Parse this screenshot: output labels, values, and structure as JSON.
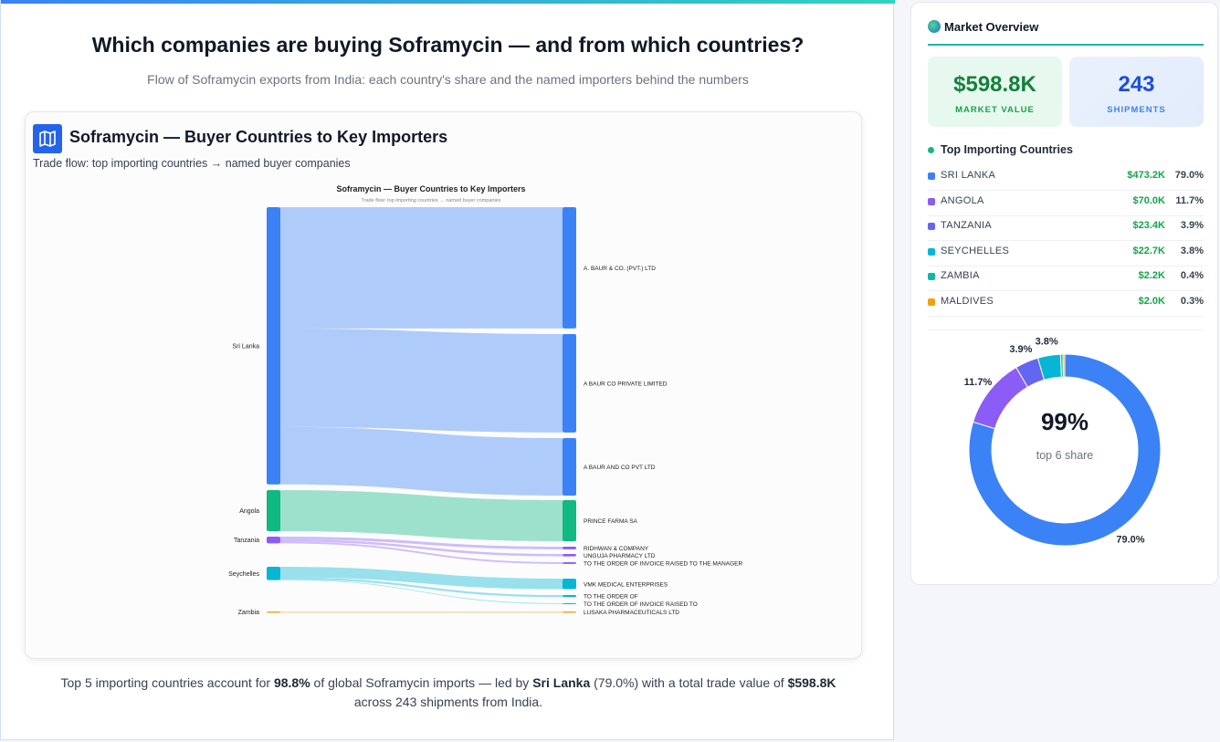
{
  "header": {
    "title": "Which companies are buying Soframycin — and from which countries?",
    "subtitle": "Flow of Soframycin exports from India: each country's share and the named importers behind the numbers"
  },
  "card": {
    "title": "Soframycin — Buyer Countries to Key Importers",
    "subtitle": "Trade flow: top importing countries → named buyer companies"
  },
  "sankey": {
    "type": "sankey",
    "sources": [
      {
        "name": "Sri Lanka",
        "color": "#3b82f6"
      },
      {
        "name": "Angola",
        "color": "#10b981"
      },
      {
        "name": "Tanzania",
        "color": "#8b5cf6"
      },
      {
        "name": "Seychelles",
        "color": "#06b6d4"
      },
      {
        "name": "Zambia",
        "color": "#f59e0b"
      }
    ],
    "targets": [
      {
        "name": "A. BAUR & CO. (PVT.) LTD"
      },
      {
        "name": "A BAUR CO PRIVATE LIMITED"
      },
      {
        "name": "A BAUR AND CO PVT LTD"
      },
      {
        "name": "PRINCE FARMA SA"
      },
      {
        "name": "RIDHWAN & COMPANY"
      },
      {
        "name": "UNGUJA PHARMACY LTD"
      },
      {
        "name": "TO THE ORDER OF INVOICE RAISED TO THE MANAGER"
      },
      {
        "name": "VMK MEDICAL ENTERPRISES"
      },
      {
        "name": "TO THE ORDER OF"
      },
      {
        "name": "TO THE ORDER OF INVOICE RAISED TO"
      },
      {
        "name": "LUSAKA PHARMACEUTICALS LTD"
      }
    ],
    "links": [
      {
        "source": 0,
        "target": 0,
        "value": 207
      },
      {
        "source": 0,
        "target": 1,
        "value": 168
      },
      {
        "source": 0,
        "target": 2,
        "value": 98.2
      },
      {
        "source": 1,
        "target": 3,
        "value": 70.0
      },
      {
        "source": 2,
        "target": 4,
        "value": 4.5
      },
      {
        "source": 2,
        "target": 5,
        "value": 4.0
      },
      {
        "source": 2,
        "target": 6,
        "value": 3.0
      },
      {
        "source": 3,
        "target": 7,
        "value": 18
      },
      {
        "source": 3,
        "target": 8,
        "value": 3.5
      },
      {
        "source": 3,
        "target": 9,
        "value": 1.2
      },
      {
        "source": 4,
        "target": 10,
        "value": 2.2
      }
    ]
  },
  "overview": {
    "title": "Market Overview",
    "kpis": [
      {
        "value": "$598.8K",
        "label": "MARKET VALUE"
      },
      {
        "value": 243,
        "label": "SHIPMENTS"
      }
    ],
    "countries_title": "Top Importing Countries",
    "countries": [
      {
        "name": "SRI LANKA",
        "value": "$473.2K",
        "share": 79.0,
        "share_label": "79.0%",
        "color": "#3b82f6"
      },
      {
        "name": "ANGOLA",
        "value": "$70.0K",
        "share": 11.7,
        "share_label": "11.7%",
        "color": "#8b5cf6"
      },
      {
        "name": "TANZANIA",
        "value": "$23.4K",
        "share": 3.9,
        "share_label": "3.9%",
        "color": "#6366f1"
      },
      {
        "name": "SEYCHELLES",
        "value": "$22.7K",
        "share": 3.8,
        "share_label": "3.8%",
        "color": "#06b6d4"
      },
      {
        "name": "ZAMBIA",
        "value": "$2.2K",
        "share": 0.4,
        "share_label": "0.4%",
        "color": "#14b8a6"
      },
      {
        "name": "MALDIVES",
        "value": "$2.0K",
        "share": 0.3,
        "share_label": "0.3%",
        "color": "#f59e0b"
      }
    ]
  },
  "donut": {
    "type": "pie",
    "center_value": "99%",
    "center_label": "top 6 share"
  },
  "footer": [
    "Top 5 importing countries account for ",
    "98.8%",
    " of global Soframycin imports — led by ",
    "Sri Lanka",
    " (79.0%) with a total trade value of ",
    "$598.8K",
    " across 243 shipments from India."
  ]
}
